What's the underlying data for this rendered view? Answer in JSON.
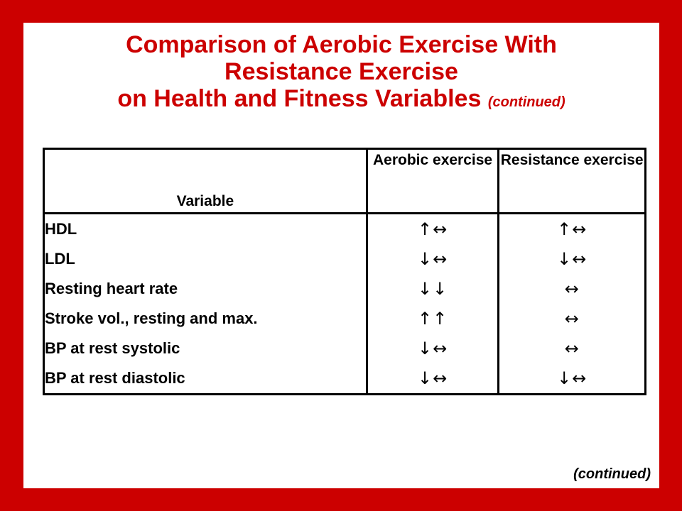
{
  "title": {
    "line1": "Comparison of Aerobic Exercise With",
    "line2": "Resistance Exercise",
    "line3": "on Health and Fitness Variables",
    "line3_sub": "(continued)"
  },
  "table": {
    "headers": {
      "variable": "Variable",
      "aerobic": "Aerobic exercise",
      "resistance": "Resistance exercise"
    },
    "variables": [
      "HDL",
      "LDL",
      "Resting heart rate",
      "Stroke vol., resting and max.",
      "BP at rest systolic",
      "BP at rest diastolic"
    ],
    "aerobic": [
      "↑↔",
      "↓↔",
      "↓↓",
      "↑↑",
      "↓↔",
      "↓↔"
    ],
    "resistance": [
      "↑↔",
      "↓↔",
      "↔",
      "↔",
      "↔",
      "↓↔"
    ]
  },
  "footer": "(continued)",
  "colors": {
    "border": "#cc0000",
    "title": "#cc0000",
    "background": "#ffffff"
  }
}
